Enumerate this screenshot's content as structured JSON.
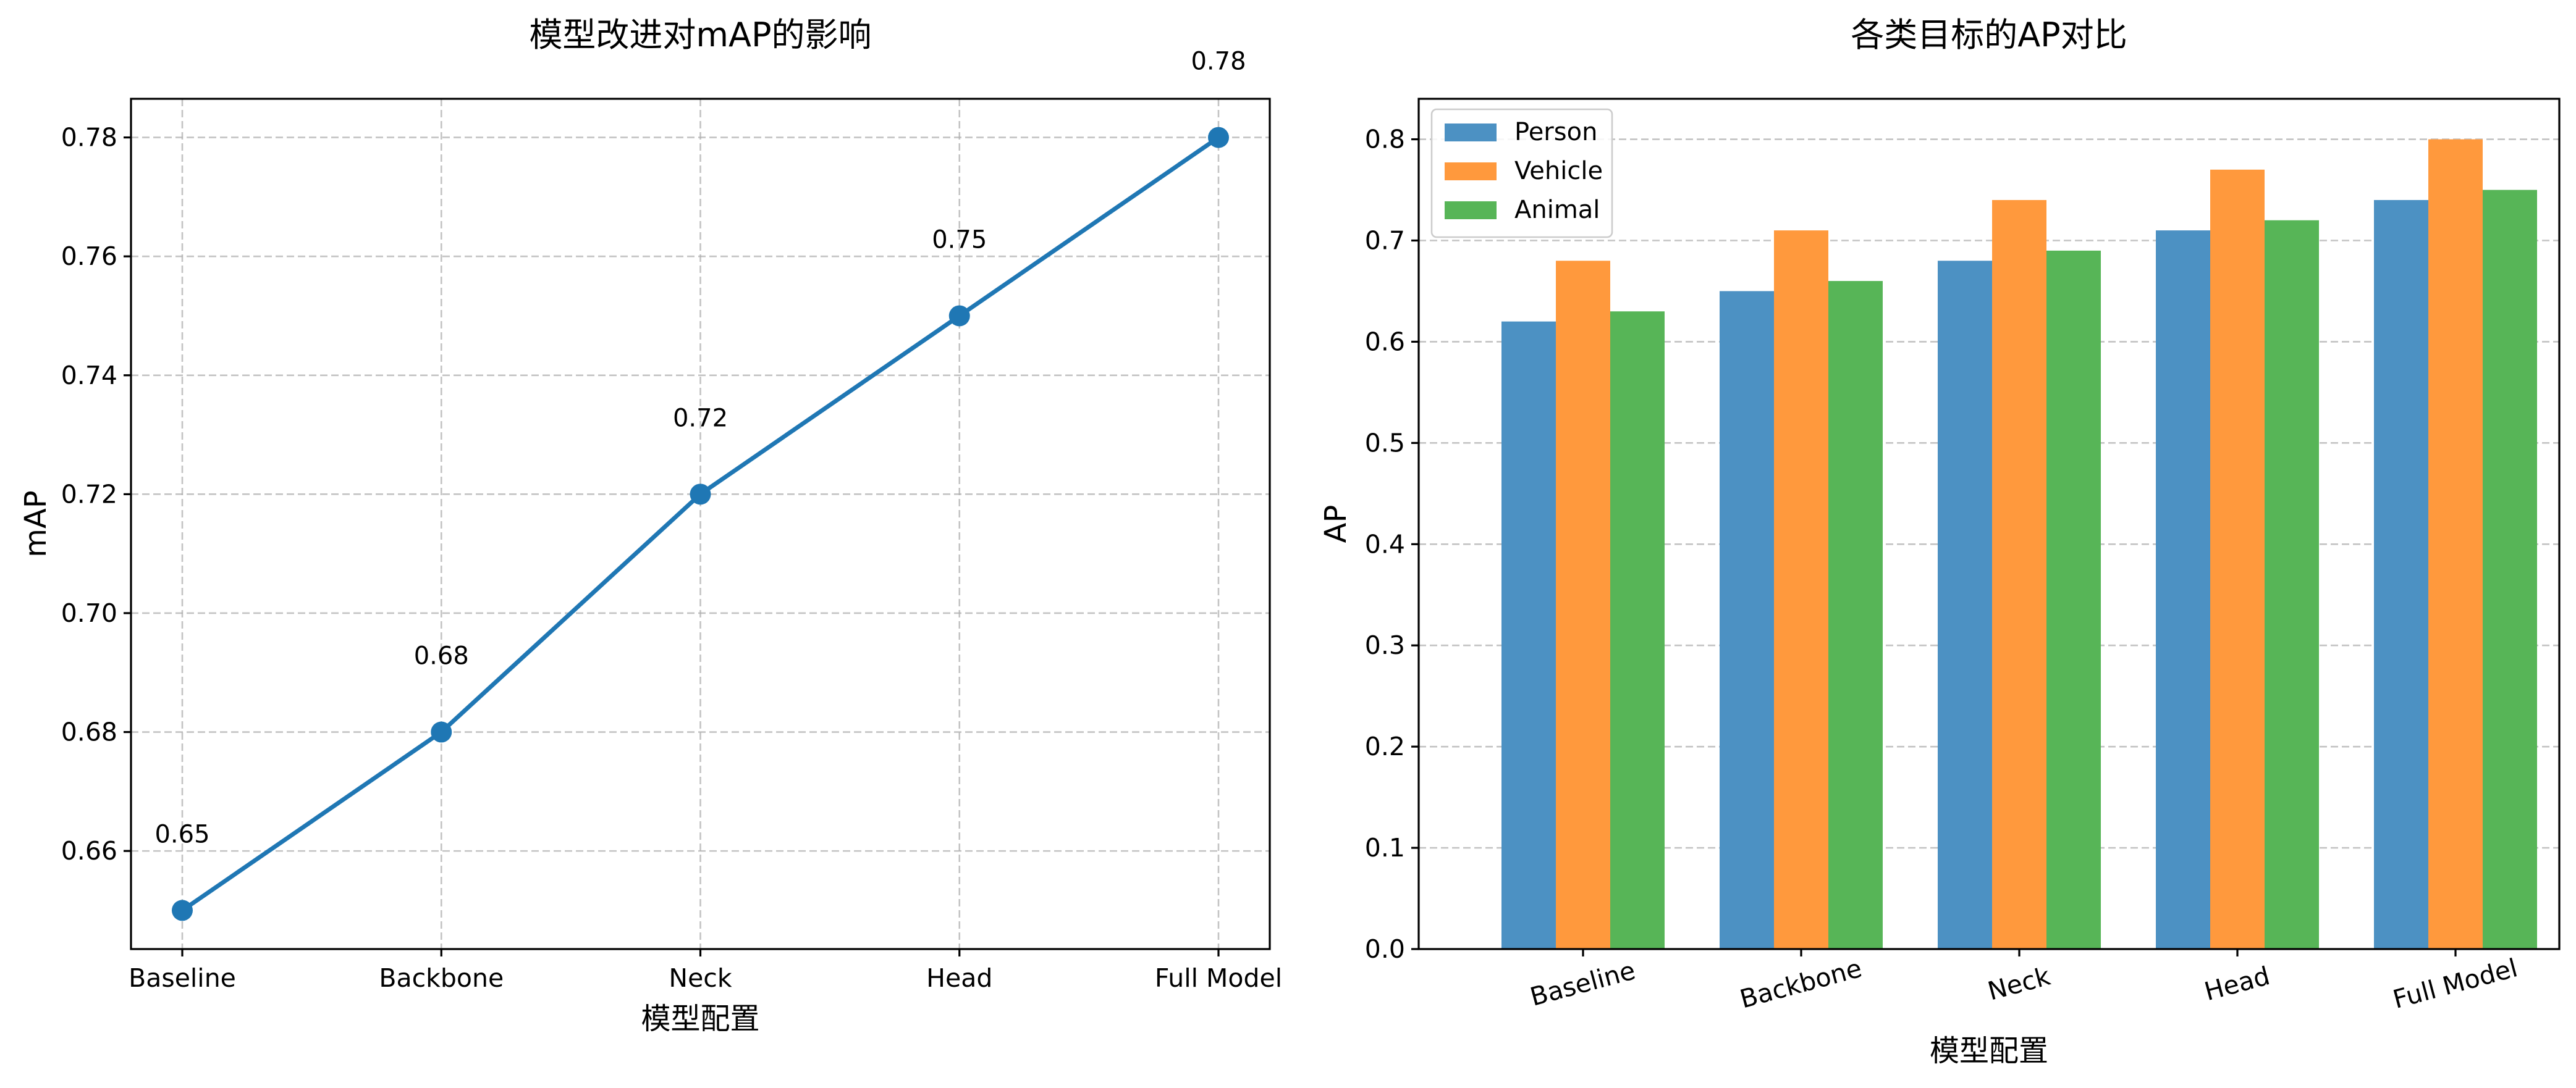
{
  "chart_data": [
    {
      "type": "line",
      "title": "模型改进对mAP的影响",
      "xlabel": "模型配置",
      "ylabel": "mAP",
      "categories": [
        "Baseline",
        "Backbone",
        "Neck",
        "Head",
        "Full Model"
      ],
      "values": [
        0.65,
        0.68,
        0.72,
        0.75,
        0.78
      ],
      "value_labels": [
        "0.65",
        "0.68",
        "0.72",
        "0.75",
        "0.78"
      ],
      "ylim": [
        0.6435,
        0.7865
      ],
      "yticks": [
        0.66,
        0.68,
        0.7,
        0.72,
        0.74,
        0.76,
        0.78
      ],
      "ytick_labels": [
        "0.66",
        "0.68",
        "0.70",
        "0.72",
        "0.74",
        "0.76",
        "0.78"
      ],
      "grid": true,
      "line_color": "#1f77b4",
      "marker": "circle"
    },
    {
      "type": "bar",
      "title": "各类目标的AP对比",
      "xlabel": "模型配置",
      "ylabel": "AP",
      "categories": [
        "Baseline",
        "Backbone",
        "Neck",
        "Head",
        "Full Model"
      ],
      "series": [
        {
          "name": "Person",
          "values": [
            0.62,
            0.65,
            0.68,
            0.71,
            0.74
          ],
          "color": "#4c91c3"
        },
        {
          "name": "Vehicle",
          "values": [
            0.68,
            0.71,
            0.74,
            0.77,
            0.8
          ],
          "color": "#ff993d"
        },
        {
          "name": "Animal",
          "values": [
            0.63,
            0.66,
            0.69,
            0.72,
            0.75
          ],
          "color": "#57b557"
        }
      ],
      "ylim": [
        0,
        0.84
      ],
      "yticks": [
        0.0,
        0.1,
        0.2,
        0.3,
        0.4,
        0.5,
        0.6,
        0.7,
        0.8
      ],
      "ytick_labels": [
        "0.0",
        "0.1",
        "0.2",
        "0.3",
        "0.4",
        "0.5",
        "0.6",
        "0.7",
        "0.8"
      ],
      "grid": true,
      "grid_axis": "y",
      "legend_position": "top-left",
      "xtick_rotation_deg": 15
    }
  ]
}
